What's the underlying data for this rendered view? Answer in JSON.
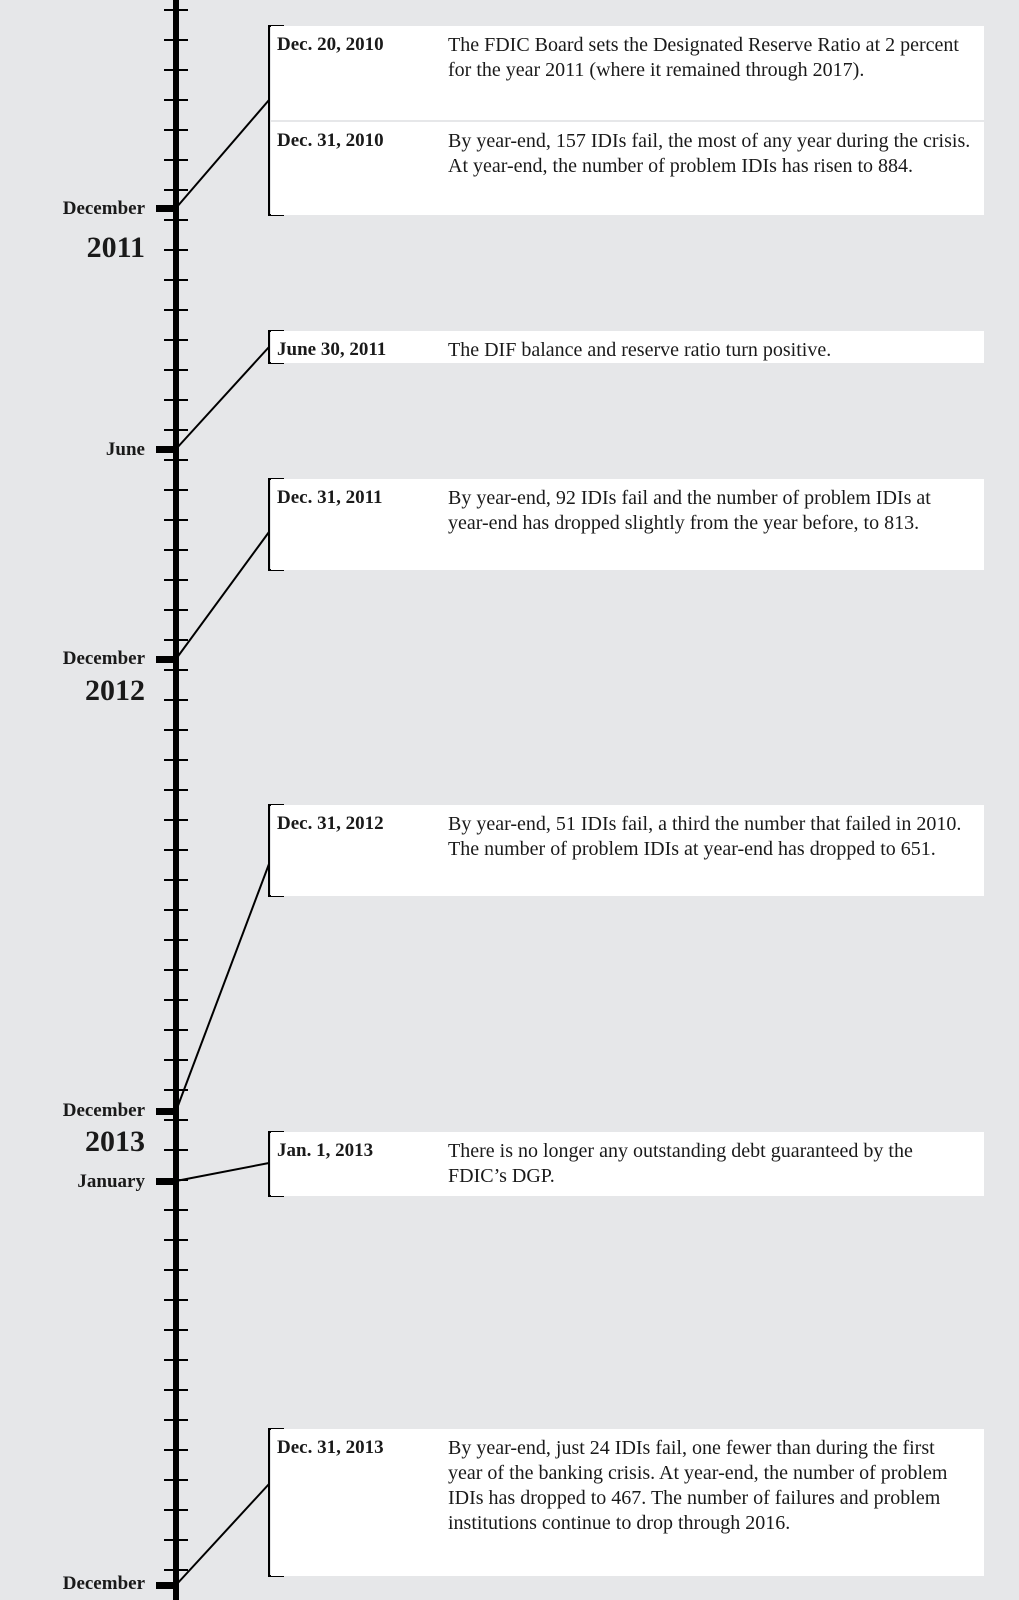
{
  "months": {
    "dec_2010": "December",
    "jun_2011": "June",
    "dec_2011": "December",
    "dec_2012": "December",
    "jan_2013": "January",
    "dec_2013": "December"
  },
  "years": {
    "y2011": "2011",
    "y2012": "2012",
    "y2013": "2013"
  },
  "events": [
    {
      "date": "Dec. 20, 2010",
      "text": "The FDIC Board sets the Designated Reserve Ratio at 2 percent for the year 2011 (where it remained through 2017)."
    },
    {
      "date": "Dec. 31, 2010",
      "text": "By year-end, 157 IDIs fail, the most of any year during the crisis. At year-end, the number of problem IDIs has risen to 884."
    },
    {
      "date": "June 30, 2011",
      "text": "The DIF balance and reserve ratio turn positive."
    },
    {
      "date": "Dec. 31, 2011",
      "text": "By year-end, 92 IDIs fail and the number of problem IDIs at year-end has dropped slightly from the year before, to 813."
    },
    {
      "date": "Dec. 31, 2012",
      "text": "By year-end, 51 IDIs fail, a third the number that failed in 2010. The number of problem IDIs at year-end has dropped to 651."
    },
    {
      "date": "Jan. 1, 2013",
      "text": "There is no longer any outstanding debt guaranteed by the FDIC’s DGP."
    },
    {
      "date": "Dec. 31, 2013",
      "text": "By year-end, just 24 IDIs fail, one fewer than during the first year of the banking crisis. At year-end, the number of problem IDIs has dropped to 467. The number of failures and problem institutions continue to drop through 2016."
    }
  ],
  "colors": {
    "background": "#e6e7e9",
    "card": "#ffffff",
    "ink": "#1a1a1a"
  }
}
